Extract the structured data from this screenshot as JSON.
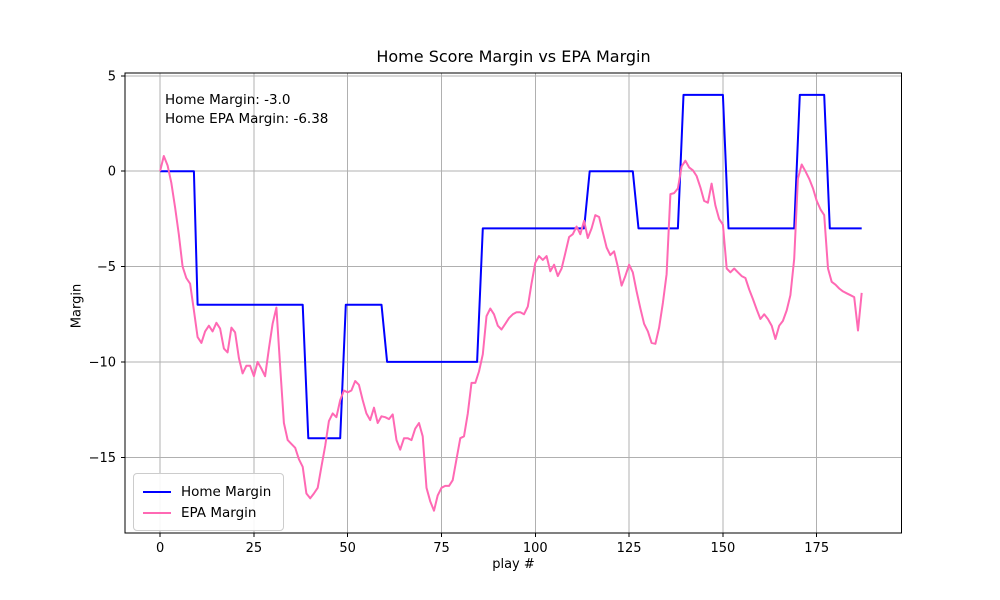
{
  "figure": {
    "title": "Home Score Margin vs EPA Margin",
    "xlabel": "play #",
    "ylabel": "Margin",
    "annotation": {
      "line1": "Home Margin: -3.0",
      "line2": "Home EPA Margin: -6.38"
    }
  },
  "legend": {
    "items": [
      {
        "label": "Home Margin",
        "color": "#0000ff"
      },
      {
        "label": "EPA Margin",
        "color": "#ff69b4"
      }
    ]
  },
  "chart_data": {
    "type": "line",
    "title": "Home Score Margin vs EPA Margin",
    "xlabel": "play #",
    "ylabel": "Margin",
    "xlim": [
      -9.35,
      197.6
    ],
    "ylim": [
      -18.97,
      5.15
    ],
    "x_ticks": [
      0,
      25,
      50,
      75,
      100,
      125,
      150,
      175
    ],
    "x_tick_labels": [
      "0",
      "25",
      "50",
      "75",
      "100",
      "125",
      "150",
      "175"
    ],
    "y_ticks": [
      5,
      0,
      -5,
      -10,
      -15
    ],
    "y_tick_labels": [
      "5",
      "0",
      "−5",
      "−10",
      "−15"
    ],
    "grid": true,
    "grid_color": "#b0b0b0",
    "spine_color": "#000000",
    "legend_position": "lower left",
    "final_values": {
      "home_margin": -3.0,
      "home_epa_margin": -6.38
    },
    "series": [
      {
        "name": "Home Margin",
        "color": "#0000ff",
        "style": "step",
        "points": [
          [
            0,
            0
          ],
          [
            9,
            0
          ],
          [
            10,
            -7
          ],
          [
            38,
            -7
          ],
          [
            39.5,
            -14
          ],
          [
            48,
            -14
          ],
          [
            49.5,
            -7
          ],
          [
            59,
            -7
          ],
          [
            60.5,
            -10
          ],
          [
            84.5,
            -10
          ],
          [
            86,
            -3
          ],
          [
            113,
            -3
          ],
          [
            114.5,
            0
          ],
          [
            126,
            0
          ],
          [
            127.5,
            -3
          ],
          [
            138,
            -3
          ],
          [
            139.5,
            4
          ],
          [
            150,
            4
          ],
          [
            151.5,
            -3
          ],
          [
            169,
            -3
          ],
          [
            170.5,
            4
          ],
          [
            177,
            4
          ],
          [
            178.5,
            -3
          ],
          [
            187,
            -3
          ]
        ]
      },
      {
        "name": "EPA Margin",
        "color": "#ff69b4",
        "style": "line",
        "x_start": 0,
        "x_step": 1,
        "values": [
          0.0,
          0.8,
          0.3,
          -0.6,
          -1.9,
          -3.3,
          -5.0,
          -5.6,
          -5.9,
          -7.3,
          -8.7,
          -9.0,
          -8.4,
          -8.1,
          -8.4,
          -7.95,
          -8.25,
          -9.3,
          -9.5,
          -8.2,
          -8.45,
          -9.8,
          -10.6,
          -10.2,
          -10.2,
          -10.75,
          -10.0,
          -10.35,
          -10.75,
          -9.3,
          -8.0,
          -7.15,
          -10.2,
          -13.2,
          -14.1,
          -14.3,
          -14.5,
          -15.1,
          -15.5,
          -16.9,
          -17.15,
          -16.9,
          -16.6,
          -15.5,
          -14.4,
          -13.1,
          -12.7,
          -12.9,
          -12.0,
          -11.5,
          -11.6,
          -11.5,
          -11.0,
          -11.2,
          -12.0,
          -12.7,
          -13.05,
          -12.4,
          -13.2,
          -12.85,
          -12.9,
          -13.0,
          -12.75,
          -14.1,
          -14.6,
          -14.0,
          -14.0,
          -14.1,
          -13.5,
          -13.2,
          -13.9,
          -16.6,
          -17.3,
          -17.8,
          -17.0,
          -16.6,
          -16.5,
          -16.5,
          -16.2,
          -15.1,
          -14.0,
          -13.9,
          -12.7,
          -11.1,
          -11.1,
          -10.5,
          -9.6,
          -7.6,
          -7.2,
          -7.5,
          -8.1,
          -8.3,
          -8.0,
          -7.7,
          -7.5,
          -7.4,
          -7.4,
          -7.5,
          -7.1,
          -5.9,
          -4.8,
          -4.45,
          -4.65,
          -4.45,
          -5.25,
          -4.9,
          -5.5,
          -5.1,
          -4.3,
          -3.45,
          -3.3,
          -2.9,
          -3.3,
          -2.6,
          -3.5,
          -3.0,
          -2.3,
          -2.4,
          -3.2,
          -4.0,
          -4.4,
          -4.2,
          -5.0,
          -6.0,
          -5.5,
          -4.9,
          -5.3,
          -6.3,
          -7.2,
          -8.0,
          -8.4,
          -9.0,
          -9.05,
          -8.2,
          -6.9,
          -5.4,
          -1.2,
          -1.15,
          -0.9,
          0.25,
          0.55,
          0.2,
          0.05,
          -0.25,
          -0.85,
          -1.55,
          -1.65,
          -0.65,
          -1.8,
          -2.5,
          -2.8,
          -5.1,
          -5.3,
          -5.1,
          -5.3,
          -5.5,
          -5.6,
          -6.2,
          -6.7,
          -7.25,
          -7.75,
          -7.5,
          -7.75,
          -8.1,
          -8.8,
          -8.1,
          -7.85,
          -7.3,
          -6.5,
          -4.6,
          -0.4,
          0.35,
          0.0,
          -0.4,
          -0.9,
          -1.55,
          -2.0,
          -2.3,
          -5.1,
          -5.8,
          -5.95,
          -6.15,
          -6.3,
          -6.4,
          -6.5,
          -6.6,
          -8.35,
          -6.38
        ]
      }
    ]
  }
}
